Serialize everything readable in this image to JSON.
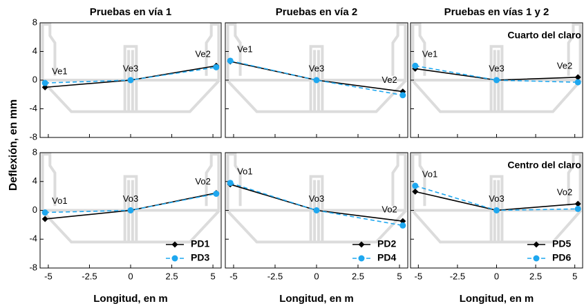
{
  "ylabel": "Deflexión, en mm",
  "chart_data": [
    {
      "type": "line",
      "title": "Pruebas en vía 1",
      "x": [
        -5.2,
        0,
        5.2
      ],
      "point_labels": [
        "Ve1",
        "Ve3",
        "Ve2"
      ],
      "xlim": [
        -5.5,
        5.5
      ],
      "ylim": [
        -8,
        8
      ],
      "xticks": [
        -5,
        -2.5,
        0,
        2.5,
        5
      ],
      "yticks": [
        -8,
        -4,
        0,
        4,
        8
      ],
      "series": [
        {
          "color": "#000000",
          "marker": "diamond",
          "linestyle": "solid",
          "values": [
            -1.0,
            0,
            2.0
          ]
        },
        {
          "color": "#1ea7ef",
          "marker": "circle",
          "linestyle": "dashed",
          "values": [
            -0.4,
            0,
            1.8
          ]
        }
      ]
    },
    {
      "type": "line",
      "title": "Pruebas en vía 2",
      "x": [
        -5.2,
        0,
        5.2
      ],
      "point_labels": [
        "Ve1",
        "Ve3",
        "Ve2"
      ],
      "xlim": [
        -5.5,
        5.5
      ],
      "ylim": [
        -8,
        8
      ],
      "xticks": [
        -5,
        -2.5,
        0,
        2.5,
        5
      ],
      "yticks": [
        -8,
        -4,
        0,
        4,
        8
      ],
      "series": [
        {
          "color": "#000000",
          "marker": "diamond",
          "linestyle": "solid",
          "values": [
            2.6,
            0,
            -1.6
          ]
        },
        {
          "color": "#1ea7ef",
          "marker": "circle",
          "linestyle": "dashed",
          "values": [
            2.7,
            0,
            -2.1
          ]
        }
      ]
    },
    {
      "type": "line",
      "title": "Pruebas en vías 1 y 2",
      "annotation": "Cuarto del claro",
      "x": [
        -5.2,
        0,
        5.2
      ],
      "point_labels": [
        "Ve1",
        "Ve3",
        "Ve2"
      ],
      "xlim": [
        -5.5,
        5.5
      ],
      "ylim": [
        -8,
        8
      ],
      "xticks": [
        -5,
        -2.5,
        0,
        2.5,
        5
      ],
      "yticks": [
        -8,
        -4,
        0,
        4,
        8
      ],
      "series": [
        {
          "color": "#000000",
          "marker": "diamond",
          "linestyle": "solid",
          "values": [
            1.6,
            0,
            0.4
          ]
        },
        {
          "color": "#1ea7ef",
          "marker": "circle",
          "linestyle": "dashed",
          "values": [
            2.0,
            0,
            -0.3
          ]
        }
      ]
    },
    {
      "type": "line",
      "xlabel": "Longitud, en m",
      "x": [
        -5.2,
        0,
        5.2
      ],
      "point_labels": [
        "Vo1",
        "Vo3",
        "Vo2"
      ],
      "legend": "lower right",
      "xlim": [
        -5.5,
        5.5
      ],
      "ylim": [
        -8,
        8
      ],
      "xticks": [
        -5,
        -2.5,
        0,
        2.5,
        5
      ],
      "yticks": [
        -8,
        -4,
        0,
        4,
        8
      ],
      "series": [
        {
          "name": "PD1",
          "color": "#000000",
          "marker": "diamond",
          "linestyle": "solid",
          "values": [
            -1.2,
            0,
            2.4
          ]
        },
        {
          "name": "PD3",
          "color": "#1ea7ef",
          "marker": "circle",
          "linestyle": "dashed",
          "values": [
            -0.3,
            0,
            2.3
          ]
        }
      ]
    },
    {
      "type": "line",
      "xlabel": "Longitud, en m",
      "x": [
        -5.2,
        0,
        5.2
      ],
      "point_labels": [
        "Vo1",
        "Vo3",
        "Vo2"
      ],
      "legend": "lower right",
      "xlim": [
        -5.5,
        5.5
      ],
      "ylim": [
        -8,
        8
      ],
      "xticks": [
        -5,
        -2.5,
        0,
        2.5,
        5
      ],
      "yticks": [
        -8,
        -4,
        0,
        4,
        8
      ],
      "series": [
        {
          "name": "PD2",
          "color": "#000000",
          "marker": "diamond",
          "linestyle": "solid",
          "values": [
            3.6,
            0,
            -1.5
          ]
        },
        {
          "name": "PD4",
          "color": "#1ea7ef",
          "marker": "circle",
          "linestyle": "dashed",
          "values": [
            3.8,
            0,
            -2.1
          ]
        }
      ]
    },
    {
      "type": "line",
      "annotation": "Centro del claro",
      "xlabel": "Longitud, en m",
      "x": [
        -5.2,
        0,
        5.2
      ],
      "point_labels": [
        "Vo1",
        "Vo3",
        "Vo2"
      ],
      "legend": "lower right",
      "xlim": [
        -5.5,
        5.5
      ],
      "ylim": [
        -8,
        8
      ],
      "xticks": [
        -5,
        -2.5,
        0,
        2.5,
        5
      ],
      "yticks": [
        -8,
        -4,
        0,
        4,
        8
      ],
      "series": [
        {
          "name": "PD5",
          "color": "#000000",
          "marker": "diamond",
          "linestyle": "solid",
          "values": [
            2.6,
            0,
            0.9
          ]
        },
        {
          "name": "PD6",
          "color": "#1ea7ef",
          "marker": "circle",
          "linestyle": "dashed",
          "values": [
            3.4,
            0,
            0.2
          ]
        }
      ]
    }
  ]
}
